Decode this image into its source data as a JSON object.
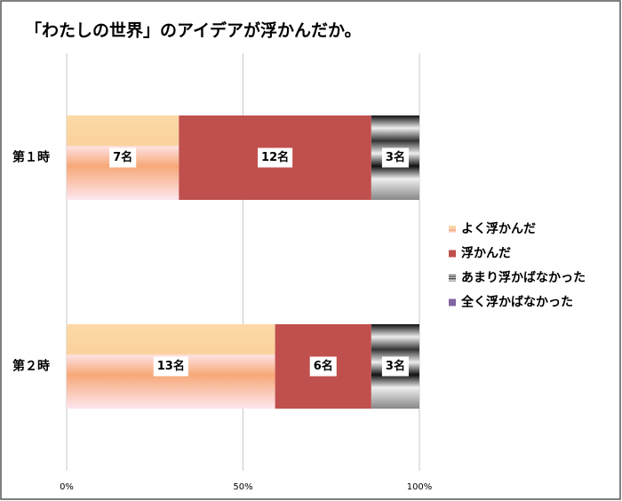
{
  "chart_data": {
    "type": "bar",
    "orientation": "horizontal",
    "stacking": "percent",
    "title": "「わたしの世界」のアイデアが浮かんだか。",
    "categories": [
      "第１時",
      "第２時"
    ],
    "series": [
      {
        "name": "よく浮かんだ",
        "color": "#f7b98a",
        "values": [
          7,
          13
        ],
        "value_labels": [
          "7名",
          "13名"
        ]
      },
      {
        "name": "浮かんだ",
        "color": "#c0504d",
        "values": [
          12,
          6
        ],
        "value_labels": [
          "12名",
          "6名"
        ]
      },
      {
        "name": "あまり浮かばなかった",
        "color": "#8c8c8c",
        "values": [
          3,
          3
        ],
        "value_labels": [
          "3名",
          "3名"
        ]
      },
      {
        "name": "全く浮かばなかった",
        "color": "#8064a2",
        "values": [
          0,
          0
        ],
        "value_labels": [
          null,
          null
        ]
      }
    ],
    "xlim": [
      0,
      100
    ],
    "xticks": [
      {
        "value": 0,
        "label": "0%"
      },
      {
        "value": 50,
        "label": "50%"
      },
      {
        "value": 100,
        "label": "100%"
      }
    ],
    "grid": true,
    "legend": "right"
  }
}
